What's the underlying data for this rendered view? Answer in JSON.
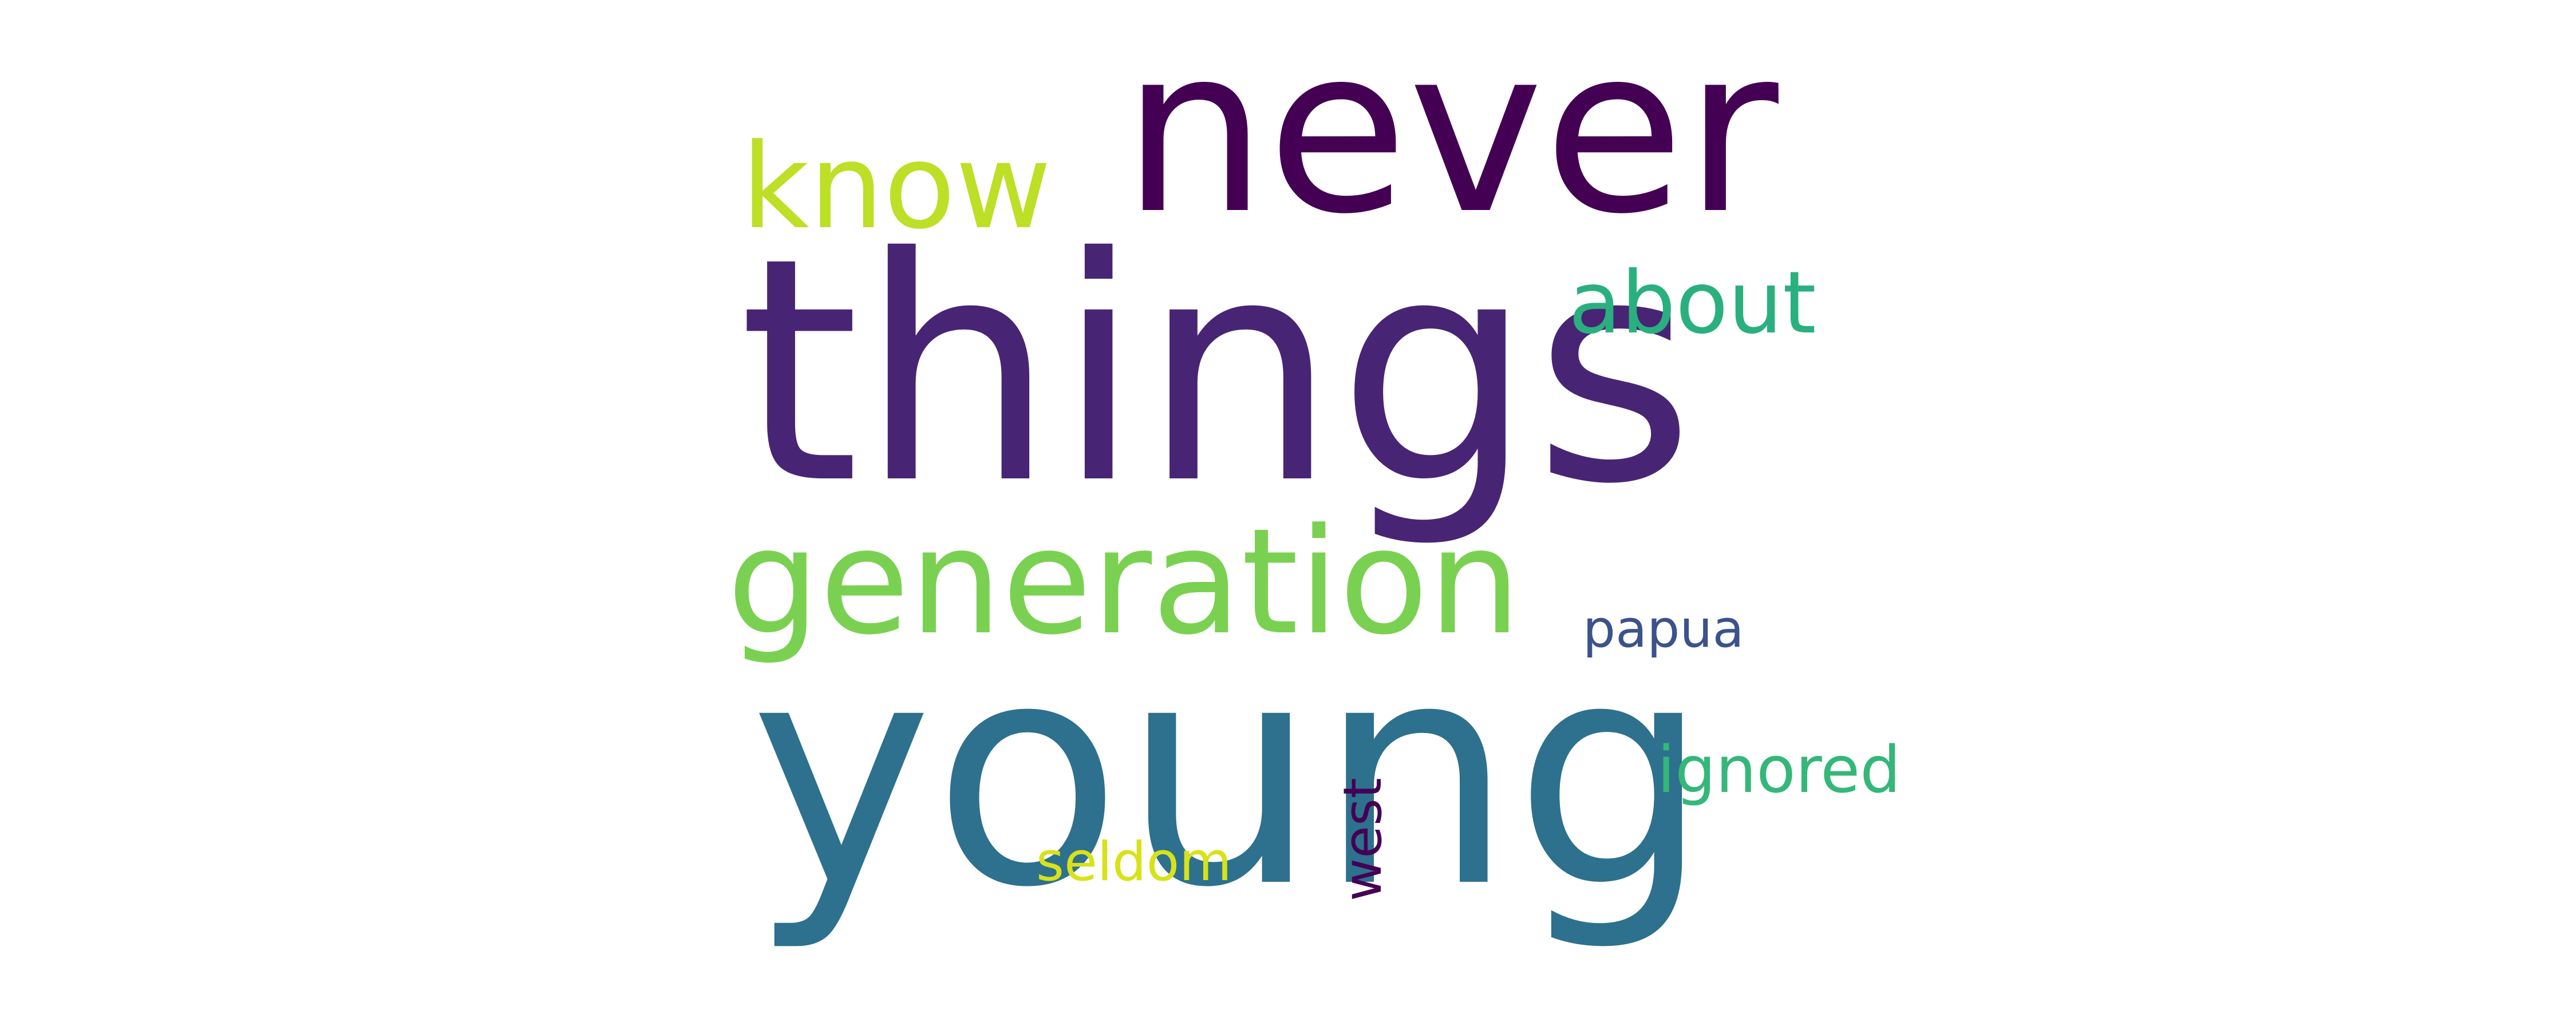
{
  "words": [
    {
      "id": "things",
      "text": "things",
      "color": "#482475"
    },
    {
      "id": "young",
      "text": "young",
      "color": "#2d718e"
    },
    {
      "id": "never",
      "text": "never",
      "color": "#440154"
    },
    {
      "id": "generation",
      "text": "generation",
      "color": "#7ad151"
    },
    {
      "id": "know",
      "text": "know",
      "color": "#bddf26"
    },
    {
      "id": "about",
      "text": "about",
      "color": "#2ab07f"
    },
    {
      "id": "ignored",
      "text": "ignored",
      "color": "#35b779"
    },
    {
      "id": "papua",
      "text": "papua",
      "color": "#3b528b"
    },
    {
      "id": "seldom",
      "text": "seldom",
      "color": "#d8e219"
    },
    {
      "id": "west",
      "text": "west",
      "color": "#440154",
      "orientation": "vertical"
    }
  ]
}
